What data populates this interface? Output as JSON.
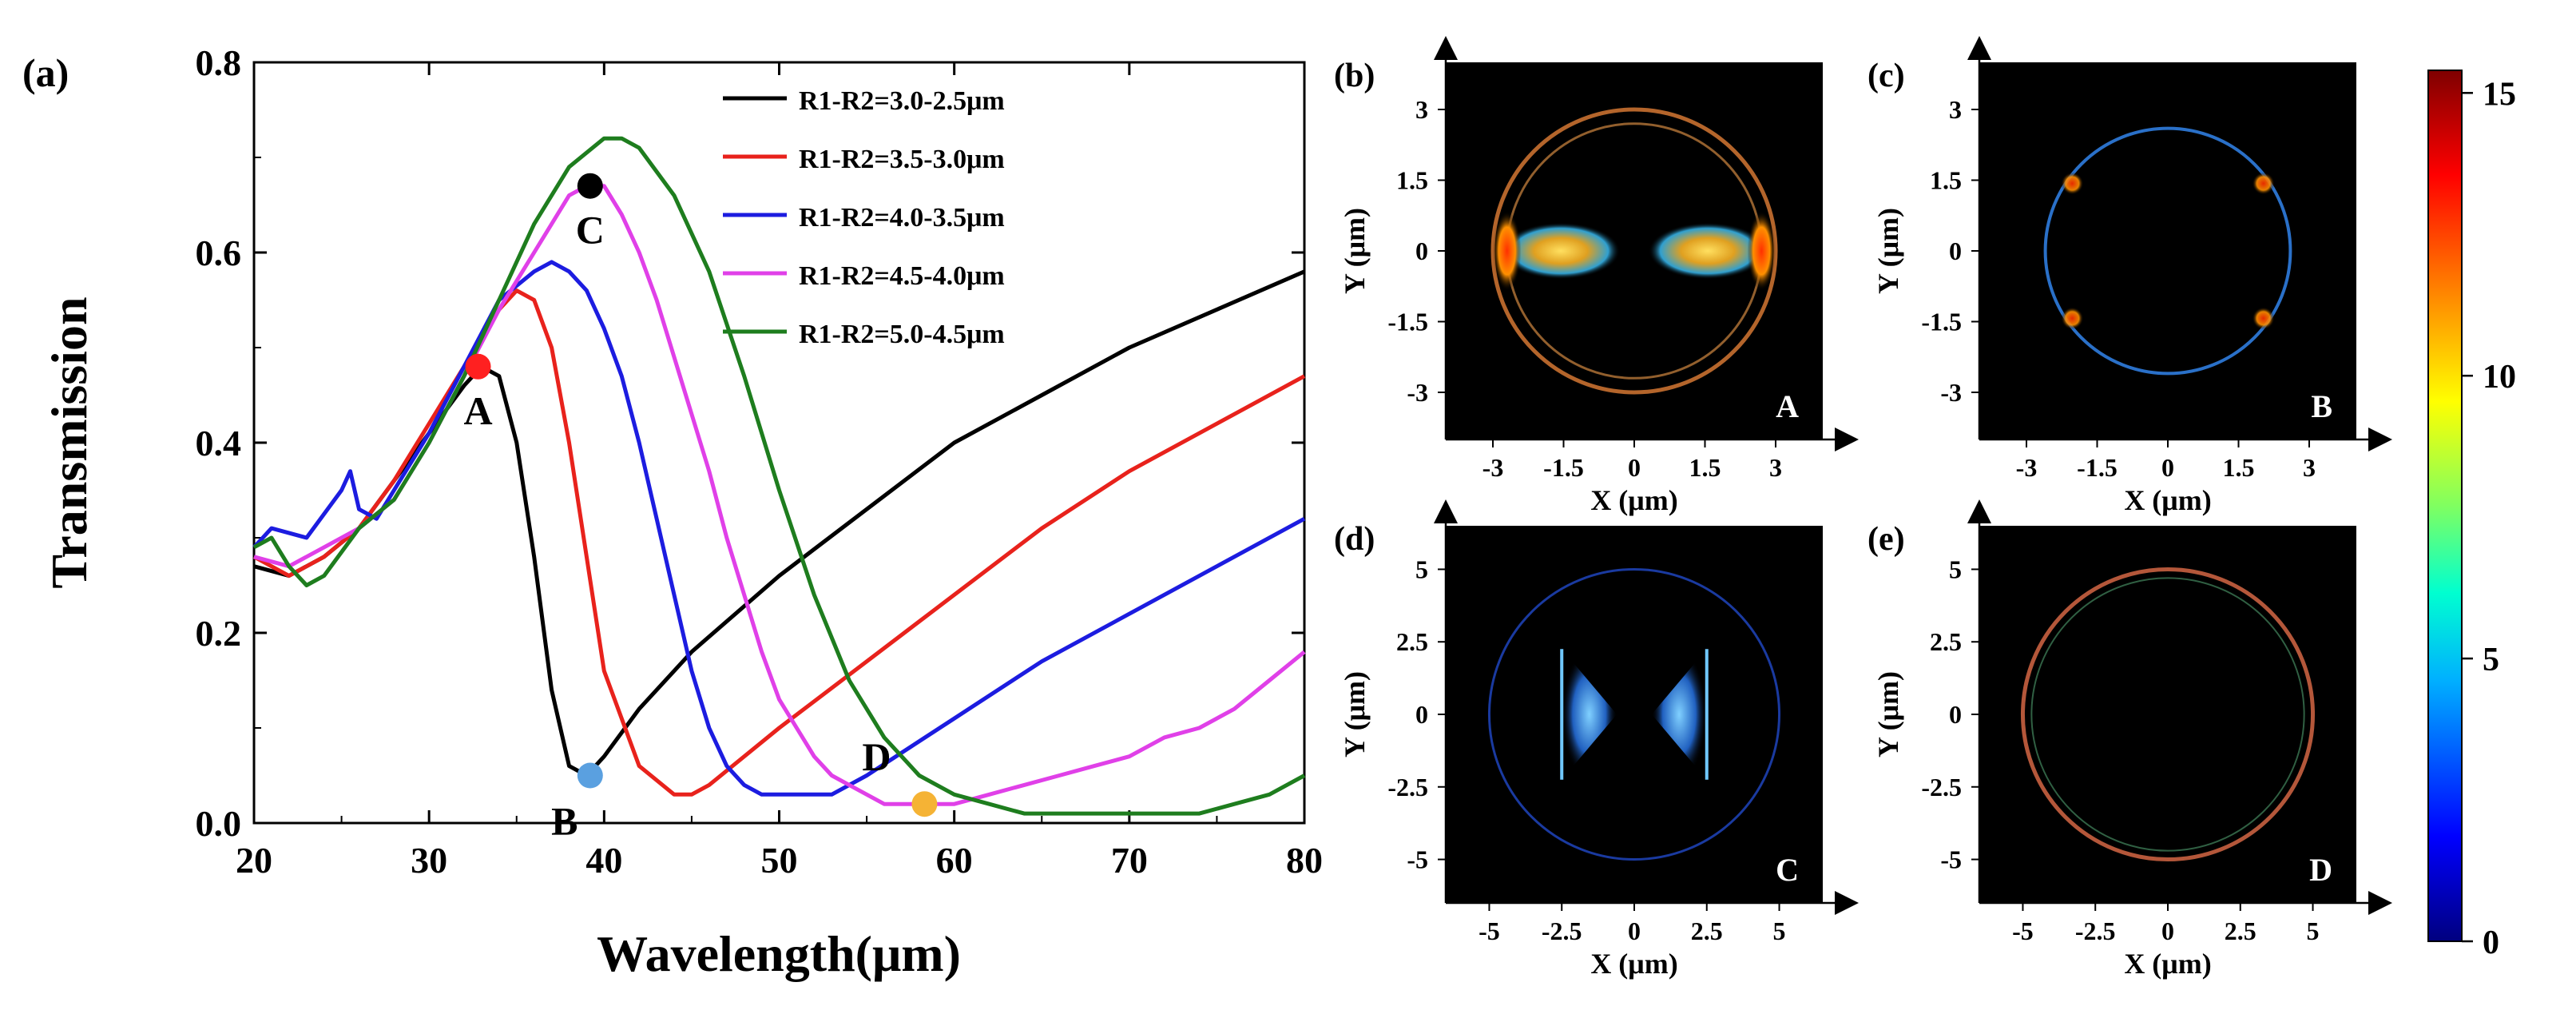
{
  "chart_data": [
    {
      "type": "line",
      "panel_label": "(a)",
      "xlabel": "Wavelength(μm)",
      "ylabel": "Transmission",
      "xlim": [
        20,
        80
      ],
      "ylim": [
        0.0,
        0.8
      ],
      "xticks": [
        "20",
        "30",
        "40",
        "50",
        "60",
        "70",
        "80"
      ],
      "yticks": [
        "0.0",
        "0.2",
        "0.4",
        "0.6",
        "0.8"
      ],
      "legend_position": "top-right",
      "series": [
        {
          "name": "R1-R2=3.0-2.5μm",
          "color": "#000000",
          "x": [
            20,
            22,
            24,
            26,
            28,
            30,
            32,
            33,
            34,
            35,
            36,
            37,
            38,
            39,
            40,
            42,
            45,
            50,
            55,
            60,
            65,
            70,
            75,
            80
          ],
          "y": [
            0.27,
            0.26,
            0.28,
            0.31,
            0.36,
            0.41,
            0.46,
            0.48,
            0.47,
            0.4,
            0.28,
            0.14,
            0.06,
            0.05,
            0.07,
            0.12,
            0.18,
            0.26,
            0.33,
            0.4,
            0.45,
            0.5,
            0.54,
            0.58
          ]
        },
        {
          "name": "R1-R2=3.5-3.0μm",
          "color": "#e8221c",
          "x": [
            20,
            22,
            24,
            26,
            28,
            30,
            32,
            34,
            35,
            36,
            37,
            38,
            39,
            40,
            42,
            44,
            45,
            46,
            48,
            50,
            55,
            60,
            65,
            70,
            75,
            80
          ],
          "y": [
            0.28,
            0.26,
            0.28,
            0.31,
            0.36,
            0.42,
            0.48,
            0.54,
            0.56,
            0.55,
            0.5,
            0.4,
            0.28,
            0.16,
            0.06,
            0.03,
            0.03,
            0.04,
            0.07,
            0.1,
            0.17,
            0.24,
            0.31,
            0.37,
            0.42,
            0.47
          ]
        },
        {
          "name": "R1-R2=4.0-3.5μm",
          "color": "#1c1ce0",
          "x": [
            20,
            21,
            23,
            25,
            25.5,
            26,
            27,
            28,
            30,
            32,
            34,
            36,
            37,
            38,
            39,
            40,
            41,
            42,
            43,
            44,
            45,
            46,
            47,
            48,
            49,
            50,
            51,
            52,
            53,
            55,
            60,
            65,
            70,
            75,
            80
          ],
          "y": [
            0.29,
            0.31,
            0.3,
            0.35,
            0.37,
            0.33,
            0.32,
            0.35,
            0.41,
            0.48,
            0.55,
            0.58,
            0.59,
            0.58,
            0.56,
            0.52,
            0.47,
            0.4,
            0.32,
            0.24,
            0.16,
            0.1,
            0.06,
            0.04,
            0.03,
            0.03,
            0.03,
            0.03,
            0.03,
            0.05,
            0.11,
            0.17,
            0.22,
            0.27,
            0.32
          ]
        },
        {
          "name": "R1-R2=4.5-4.0μm",
          "color": "#e040e8",
          "x": [
            20,
            22,
            24,
            26,
            28,
            30,
            32,
            34,
            36,
            38,
            39,
            40,
            41,
            42,
            43,
            44,
            45,
            46,
            47,
            48,
            49,
            50,
            51,
            52,
            53,
            54,
            55,
            56,
            57,
            58,
            60,
            62,
            64,
            66,
            68,
            70,
            72,
            74,
            76,
            78,
            80
          ],
          "y": [
            0.28,
            0.27,
            0.29,
            0.31,
            0.34,
            0.4,
            0.47,
            0.54,
            0.6,
            0.66,
            0.67,
            0.67,
            0.64,
            0.6,
            0.55,
            0.49,
            0.43,
            0.37,
            0.3,
            0.24,
            0.18,
            0.13,
            0.1,
            0.07,
            0.05,
            0.04,
            0.03,
            0.02,
            0.02,
            0.02,
            0.02,
            0.03,
            0.04,
            0.05,
            0.06,
            0.07,
            0.09,
            0.1,
            0.12,
            0.15,
            0.18
          ]
        },
        {
          "name": "R1-R2=5.0-4.5μm",
          "color": "#1e7d1e",
          "x": [
            20,
            21,
            22,
            23,
            24,
            26,
            28,
            30,
            32,
            34,
            36,
            38,
            40,
            41,
            42,
            44,
            46,
            48,
            50,
            52,
            54,
            56,
            58,
            60,
            62,
            64,
            66,
            68,
            70,
            72,
            74,
            76,
            78,
            80
          ],
          "y": [
            0.29,
            0.3,
            0.27,
            0.25,
            0.26,
            0.31,
            0.34,
            0.4,
            0.47,
            0.55,
            0.63,
            0.69,
            0.72,
            0.72,
            0.71,
            0.66,
            0.58,
            0.47,
            0.35,
            0.24,
            0.15,
            0.09,
            0.05,
            0.03,
            0.02,
            0.01,
            0.01,
            0.01,
            0.01,
            0.01,
            0.01,
            0.02,
            0.03,
            0.05
          ]
        }
      ],
      "markers": [
        {
          "label": "A",
          "x": 32.8,
          "y": 0.48,
          "color": "#ff2020"
        },
        {
          "label": "B",
          "x": 39.2,
          "y": 0.05,
          "color": "#5aa0e0"
        },
        {
          "label": "C",
          "x": 39.2,
          "y": 0.67,
          "color": "#000000"
        },
        {
          "label": "D",
          "x": 58.3,
          "y": 0.02,
          "color": "#f5b335"
        }
      ]
    },
    {
      "type": "heatmap",
      "colorbar": {
        "min": 0,
        "max": 15,
        "ticks": [
          "0",
          "5",
          "10",
          "15"
        ],
        "colors": [
          "#00007f",
          "#0000ff",
          "#00b0ff",
          "#00ffd0",
          "#80ff60",
          "#ffff00",
          "#ff8000",
          "#ff0000",
          "#7f0000"
        ]
      },
      "panels": [
        {
          "label": "(b)",
          "point": "A",
          "xlabel": "X (μm)",
          "ylabel": "Y (μm)",
          "range": [
            -4,
            4
          ],
          "radius": 3.0,
          "xticks": [
            "-3",
            "-1.5",
            "0",
            "1.5",
            "3"
          ],
          "yticks": [
            "3",
            "1.5",
            "0",
            "-1.5",
            "-3"
          ]
        },
        {
          "label": "(c)",
          "point": "B",
          "xlabel": "X (μm)",
          "ylabel": "Y (μm)",
          "range": [
            -4,
            4
          ],
          "radius": 2.6,
          "xticks": [
            "-3",
            "-1.5",
            "0",
            "1.5",
            "3"
          ],
          "yticks": [
            "3",
            "1.5",
            "0",
            "-1.5",
            "-3"
          ]
        },
        {
          "label": "(d)",
          "point": "C",
          "xlabel": "X (μm)",
          "ylabel": "Y (μm)",
          "range": [
            -6.5,
            6.5
          ],
          "radius": 5.0,
          "xticks": [
            "-5",
            "-2.5",
            "0",
            "2.5",
            "5"
          ],
          "yticks": [
            "5",
            "2.5",
            "0",
            "-2.5",
            "-5"
          ]
        },
        {
          "label": "(e)",
          "point": "D",
          "xlabel": "X (μm)",
          "ylabel": "Y (μm)",
          "range": [
            -6.5,
            6.5
          ],
          "radius": 5.0,
          "xticks": [
            "-5",
            "-2.5",
            "0",
            "2.5",
            "5"
          ],
          "yticks": [
            "5",
            "2.5",
            "0",
            "-2.5",
            "-5"
          ]
        }
      ]
    }
  ]
}
